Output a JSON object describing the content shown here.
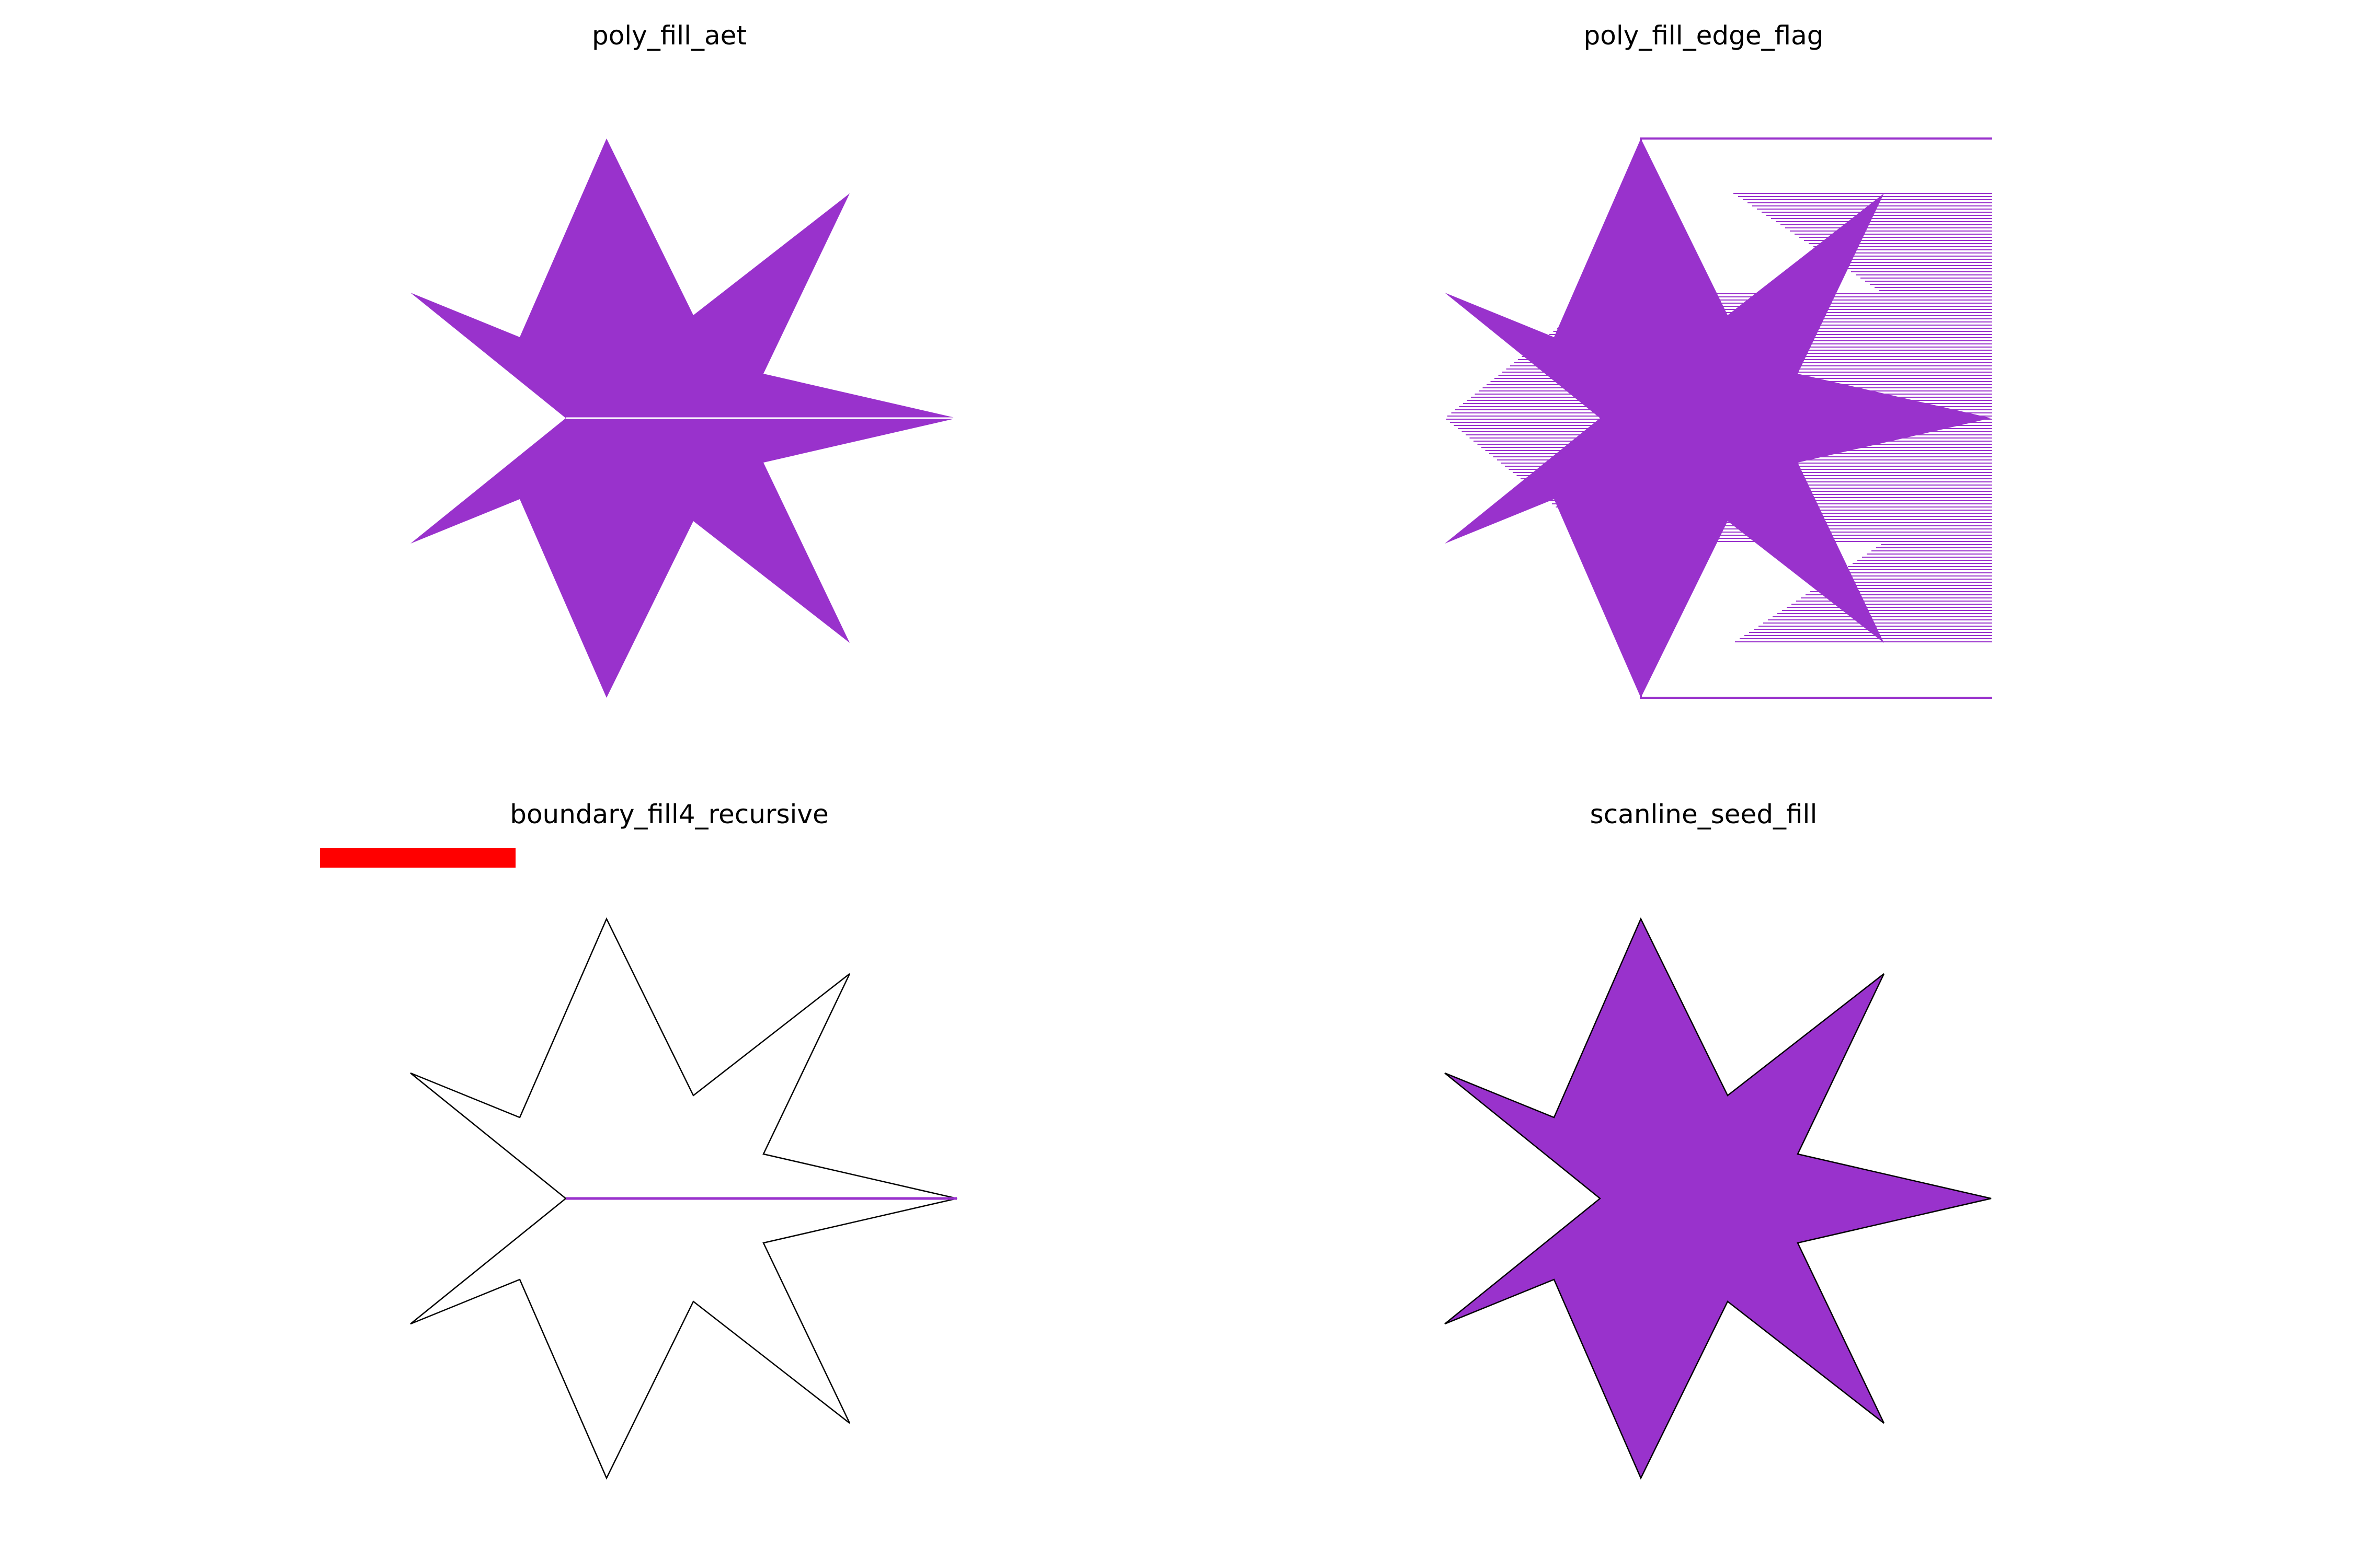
{
  "figure": {
    "panels": [
      {
        "title": "poly_fill_aet",
        "method": "solid"
      },
      {
        "title": "poly_fill_edge_flag",
        "method": "edge_flag"
      },
      {
        "title": "boundary_fill4_recursive",
        "method": "boundary_only"
      },
      {
        "title": "scanline_seed_fill",
        "method": "solid_outlined"
      }
    ],
    "shape": "seven-point-star",
    "colors": {
      "fill": "#9932CC",
      "outline": "#000000",
      "highlight": "#FF0000",
      "background": "#FFFFFF"
    }
  }
}
